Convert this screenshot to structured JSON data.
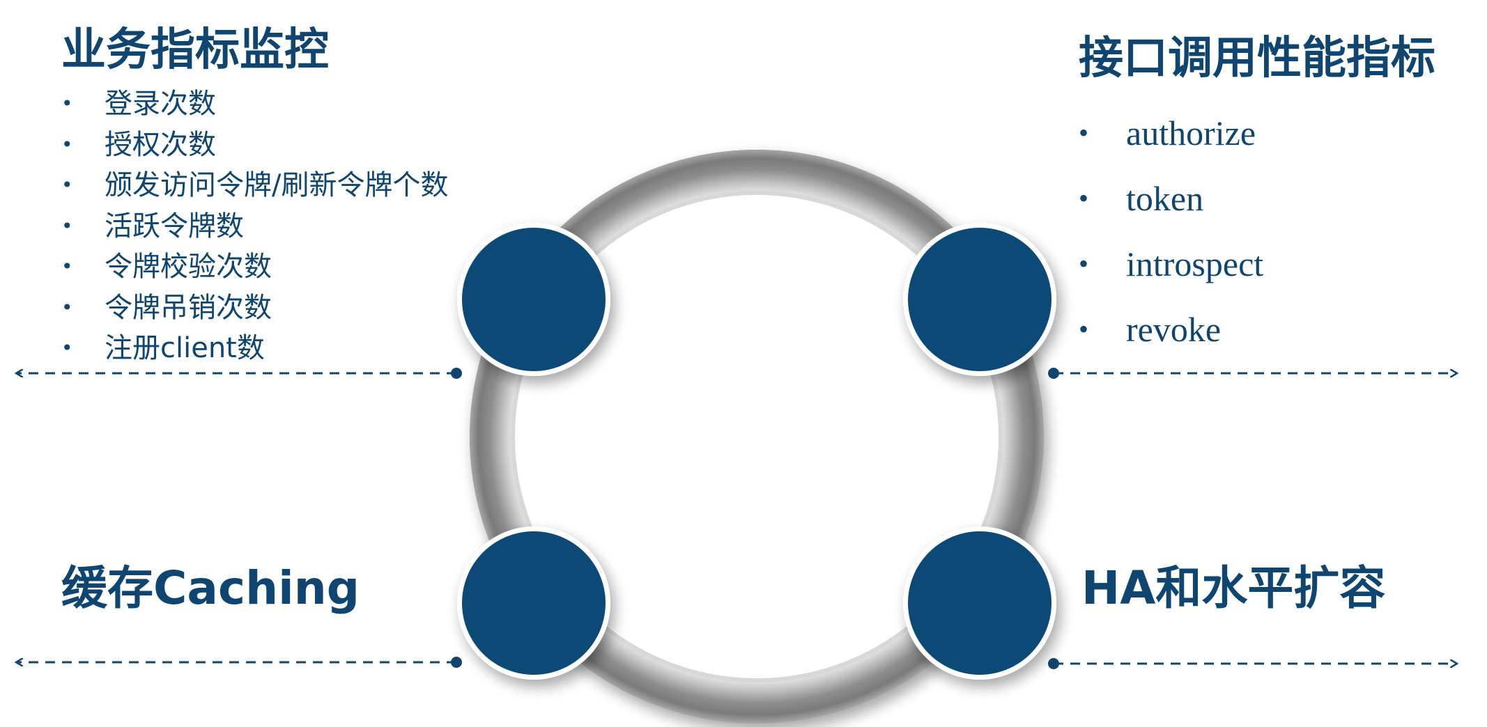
{
  "colors": {
    "accent": "#074876",
    "ring": "#8a8a8a",
    "text": "#0e4671"
  },
  "top_left": {
    "title": "业务指标监控",
    "items": [
      "登录次数",
      "授权次数",
      "颁发访问令牌/刷新令牌个数",
      "活跃令牌数",
      "令牌校验次数",
      "令牌吊销次数",
      "注册client数"
    ]
  },
  "top_right": {
    "title": "接口调用性能指标",
    "items": [
      "authorize",
      "token",
      "introspect",
      "revoke"
    ]
  },
  "bottom_left": {
    "title": "缓存Caching"
  },
  "bottom_right": {
    "title": "HA和水平扩容"
  },
  "bullet_glyph": "•"
}
